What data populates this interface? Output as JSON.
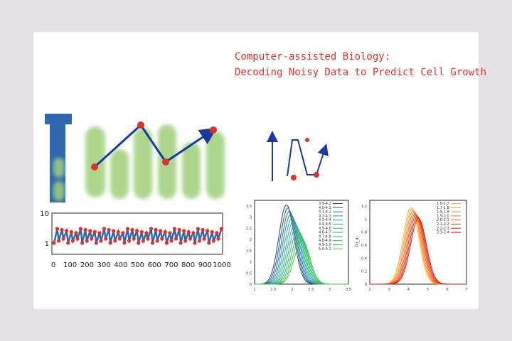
{
  "header": {
    "lines": [
      "Computer-assisted Biology:",
      "Decoding Noisy Data to Predict Cell Growth"
    ]
  },
  "trace_plot": {
    "xticks": [
      "0",
      "100",
      "200",
      "300",
      "400",
      "500",
      "600",
      "700",
      "800",
      "900",
      "1000"
    ],
    "yticks": [
      "10",
      "1"
    ]
  },
  "size_plot": {
    "xticks": [
      "1",
      "1.5",
      "2",
      "2.5",
      "3",
      "3.5"
    ],
    "yticks": [
      "0",
      "0.5",
      "1",
      "1.5",
      "2",
      "2.5",
      "3",
      "3.5"
    ],
    "legend": [
      "3.9-4.2",
      "4.0-4.1",
      "4.1-4.2",
      "4.2-4.3",
      "4.3-4.4",
      "4.4-4.5",
      "4.5-4.6",
      "4.6-4.7",
      "4.7-4.8",
      "4.8-4.9",
      "4.9-5.0",
      "5.0-5.1"
    ]
  },
  "time_plot": {
    "ylabel": "P(t_d)",
    "xticks": [
      "2",
      "3",
      "4",
      "5",
      "6",
      "7"
    ],
    "yticks": [
      "0",
      "0.2",
      "0.4",
      "0.6",
      "0.8",
      "1",
      "1.2"
    ],
    "legend": [
      "1.6-1.7",
      "1.7-1.8",
      "1.8-1.9",
      "1.9-2.0",
      "2.0-2.1",
      "2.1-2.2",
      "2.2-2.3",
      "2.3-2.4"
    ]
  }
}
